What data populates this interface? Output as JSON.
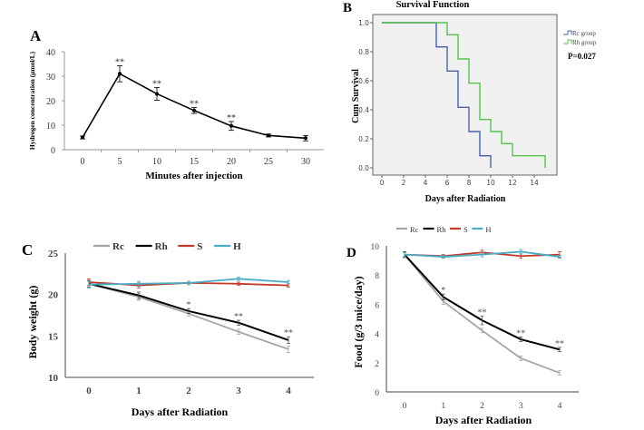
{
  "chart_data": [
    {
      "panel": "A",
      "type": "line",
      "title": "",
      "xlabel": "Minutes after injection",
      "ylabel": "Hydrogen concentration (μmol/L)",
      "x": [
        0,
        5,
        10,
        15,
        20,
        25,
        30
      ],
      "xticks": [
        "0",
        "5",
        "10",
        "15",
        "20",
        "25",
        "30"
      ],
      "yticks": [
        "0",
        "10",
        "20",
        "30",
        "40"
      ],
      "ylim": [
        0,
        40
      ],
      "xlim": [
        -3,
        33
      ],
      "series": [
        {
          "name": "Hydrogen",
          "color": "#000000",
          "values": [
            5.0,
            31.0,
            22.8,
            16.0,
            9.7,
            5.8,
            4.7
          ],
          "errors": [
            0.6,
            3.3,
            2.6,
            1.2,
            1.8,
            0.6,
            1.1
          ],
          "annotations": [
            "",
            "**",
            "**",
            "**",
            "**",
            "",
            ""
          ]
        }
      ],
      "grid": false
    },
    {
      "panel": "B",
      "type": "line",
      "subtype": "kaplan-meier step",
      "title": "Survival Function",
      "xlabel": "Days after Radiation",
      "ylabel": "Cum Survival",
      "xticks": [
        "0",
        "2",
        "4",
        "6",
        "8",
        "10",
        "12",
        "14"
      ],
      "yticks": [
        "0.0",
        "0.2",
        "0.4",
        "0.6",
        "0.8",
        "1.0"
      ],
      "xlim": [
        -0.8,
        16
      ],
      "ylim": [
        -0.05,
        1.05
      ],
      "legend_position": "right",
      "annotation": "P=0.027",
      "series": [
        {
          "name": "Rc group",
          "color": "#4a5fa8",
          "steps_x": [
            0,
            5,
            6,
            7,
            8,
            9,
            10
          ],
          "steps_y": [
            1.0,
            0.833,
            0.667,
            0.417,
            0.25,
            0.083,
            0.0
          ]
        },
        {
          "name": "Rh group",
          "color": "#55c24f",
          "steps_x": [
            0,
            6,
            7,
            8,
            9,
            10,
            11,
            12,
            15
          ],
          "steps_y": [
            1.0,
            0.917,
            0.75,
            0.583,
            0.333,
            0.25,
            0.167,
            0.083,
            0.0
          ]
        }
      ],
      "background": "#f0f0f0"
    },
    {
      "panel": "C",
      "type": "line",
      "title": "",
      "xlabel": "Days after Radiation",
      "ylabel": "Body weight (g)",
      "x": [
        0,
        1,
        2,
        3,
        4
      ],
      "xticks": [
        "0",
        "1",
        "2",
        "3",
        "4"
      ],
      "yticks": [
        "10",
        "15",
        "20",
        "25"
      ],
      "ylim": [
        10,
        25
      ],
      "legend_position": "top",
      "series": [
        {
          "name": "Rc",
          "color": "#a6a6a6",
          "values": [
            21.3,
            19.7,
            17.7,
            15.5,
            13.4
          ],
          "errors": [
            0.4,
            0.4,
            0.3,
            0.3,
            0.4
          ]
        },
        {
          "name": "Rh",
          "color": "#000000",
          "values": [
            21.3,
            19.9,
            18.0,
            16.6,
            14.5
          ],
          "errors": [
            0.4,
            0.4,
            0.3,
            0.3,
            0.4
          ]
        },
        {
          "name": "S",
          "color": "#c0392b",
          "values": [
            21.5,
            21.1,
            21.4,
            21.3,
            21.1
          ],
          "errors": [
            0.4,
            0.3,
            0.2,
            0.2,
            0.2
          ]
        },
        {
          "name": "H",
          "color": "#4bacc6",
          "values": [
            21.2,
            21.3,
            21.4,
            21.9,
            21.5
          ],
          "errors": [
            0.4,
            0.3,
            0.2,
            0.2,
            0.2
          ]
        }
      ],
      "annotations": [
        {
          "x": 2,
          "text": "*"
        },
        {
          "x": 3,
          "text": "**"
        },
        {
          "x": 4,
          "text": "**"
        }
      ]
    },
    {
      "panel": "D",
      "type": "line",
      "title": "",
      "xlabel": "Days after Radiation",
      "ylabel": "Food (g/3 mice/day)",
      "x": [
        0,
        1,
        2,
        3,
        4
      ],
      "xticks": [
        "0",
        "1",
        "2",
        "3",
        "4"
      ],
      "yticks": [
        "0",
        "2",
        "4",
        "6",
        "8",
        "10"
      ],
      "ylim": [
        0,
        10
      ],
      "legend_position": "top",
      "series": [
        {
          "name": "Rc",
          "color": "#a6a6a6",
          "values": [
            9.4,
            6.2,
            4.2,
            2.3,
            1.3
          ],
          "errors": [
            0.2,
            0.2,
            0.15,
            0.15,
            0.15
          ]
        },
        {
          "name": "Rh",
          "color": "#000000",
          "values": [
            9.4,
            6.5,
            4.9,
            3.6,
            2.9
          ],
          "errors": [
            0.2,
            0.2,
            0.3,
            0.15,
            0.15
          ]
        },
        {
          "name": "S",
          "color": "#c0392b",
          "values": [
            9.4,
            9.3,
            9.55,
            9.3,
            9.4
          ],
          "errors": [
            0.15,
            0.1,
            0.15,
            0.15,
            0.2
          ]
        },
        {
          "name": "H",
          "color": "#4bacc6",
          "values": [
            9.4,
            9.25,
            9.4,
            9.6,
            9.25
          ],
          "errors": [
            0.15,
            0.1,
            0.15,
            0.15,
            0.1
          ]
        }
      ],
      "annotations": [
        {
          "x": 1,
          "text": "*"
        },
        {
          "x": 2,
          "text": "**"
        },
        {
          "x": 3,
          "text": "**"
        },
        {
          "x": 4,
          "text": "**"
        }
      ]
    }
  ],
  "panel_labels": {
    "a": "A",
    "b": "B",
    "c": "C",
    "d": "D"
  }
}
